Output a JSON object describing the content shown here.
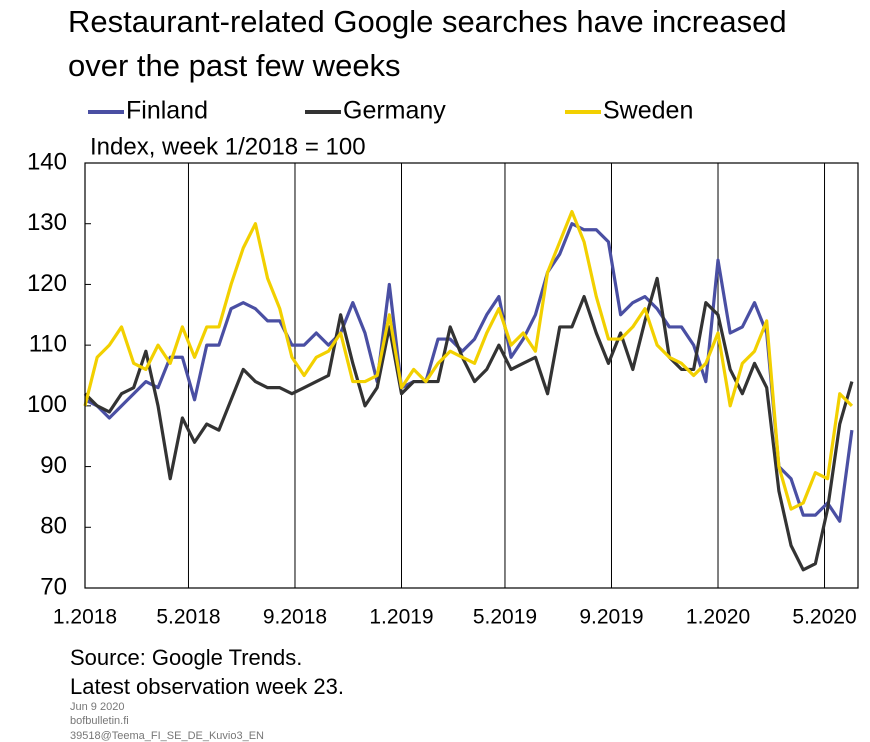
{
  "chart_data": {
    "type": "line",
    "title_lines": [
      "Restaurant-related Google searches have increased",
      "over the past few weeks"
    ],
    "subtitle": "Index, week 1/2018 = 100",
    "source": "Source: Google Trends.",
    "note": "Latest observation week 23.",
    "footer": [
      "Jun 9 2020",
      "bofbulletin.fi",
      "39518@Teema_FI_SE_DE_Kuvio3_EN"
    ],
    "x": [
      0,
      2,
      4,
      6,
      8,
      10,
      12,
      14,
      16,
      18,
      20,
      22,
      24,
      26,
      28,
      30,
      32,
      34,
      36,
      38,
      40,
      42,
      44,
      46,
      48,
      50,
      52,
      54,
      56,
      58,
      60,
      62,
      64,
      66,
      68,
      70,
      72,
      74,
      76,
      78,
      80,
      82,
      84,
      86,
      88,
      90,
      92,
      94,
      96,
      98,
      100,
      102,
      104,
      106,
      108,
      110,
      112,
      114,
      116,
      118,
      120,
      122,
      124,
      126
    ],
    "xlim": [
      0,
      127
    ],
    "xticks": [
      {
        "value": 0,
        "label": "1.2018"
      },
      {
        "value": 17,
        "label": "5.2018"
      },
      {
        "value": 34.5,
        "label": "9.2018"
      },
      {
        "value": 52,
        "label": "1.2019"
      },
      {
        "value": 69,
        "label": "5.2019"
      },
      {
        "value": 86.5,
        "label": "9.2019"
      },
      {
        "value": 104,
        "label": "1.2020"
      },
      {
        "value": 121.5,
        "label": "5.2020"
      }
    ],
    "ylim": [
      70,
      140
    ],
    "yticks": [
      70,
      80,
      90,
      100,
      110,
      120,
      130,
      140
    ],
    "grid": "x",
    "series": [
      {
        "name": "Finland",
        "color": "#4a4fa3",
        "values": [
          101,
          100,
          98,
          100,
          102,
          104,
          103,
          108,
          108,
          101,
          110,
          110,
          116,
          117,
          116,
          114,
          114,
          110,
          110,
          112,
          110,
          112,
          117,
          112,
          104,
          120,
          103,
          104,
          104,
          111,
          111,
          109,
          111,
          115,
          118,
          108,
          111,
          115,
          122,
          125,
          130,
          129,
          129,
          127,
          115,
          117,
          118,
          116,
          113,
          113,
          110,
          104,
          124,
          112,
          113,
          117,
          112,
          90,
          88,
          82,
          82,
          84,
          81,
          96
        ]
      },
      {
        "name": "Germany",
        "color": "#333333",
        "values": [
          102,
          100,
          99,
          102,
          103,
          109,
          100,
          88,
          98,
          94,
          97,
          96,
          101,
          106,
          104,
          103,
          103,
          102,
          103,
          104,
          105,
          115,
          107,
          100,
          103,
          113,
          102,
          104,
          104,
          104,
          113,
          108,
          104,
          106,
          110,
          106,
          107,
          108,
          102,
          113,
          113,
          118,
          112,
          107,
          112,
          106,
          114,
          121,
          108,
          106,
          106,
          117,
          115,
          106,
          102,
          107,
          103,
          86,
          77,
          73,
          74,
          83,
          97,
          104
        ]
      },
      {
        "name": "Sweden",
        "color": "#f2d000",
        "values": [
          100,
          108,
          110,
          113,
          107,
          106,
          110,
          107,
          113,
          108,
          113,
          113,
          120,
          126,
          130,
          121,
          116,
          108,
          105,
          108,
          109,
          112,
          104,
          104,
          105,
          115,
          103,
          106,
          104,
          107,
          109,
          108,
          107,
          112,
          116,
          110,
          112,
          109,
          122,
          127,
          132,
          127,
          118,
          111,
          111,
          113,
          116,
          110,
          108,
          107,
          105,
          107,
          112,
          100,
          107,
          109,
          114,
          90,
          83,
          84,
          89,
          88,
          102,
          100
        ]
      }
    ]
  }
}
